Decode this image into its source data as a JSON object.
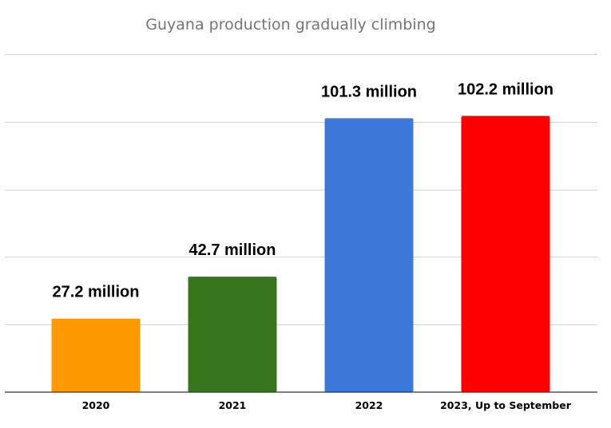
{
  "chart_data": {
    "type": "bar",
    "title": "Guyana production gradually climbing",
    "categories": [
      "2020",
      "2021",
      "2022",
      "2023, Up to September"
    ],
    "values": [
      27.2,
      42.7,
      101.3,
      102.2
    ],
    "data_labels": [
      "27.2 million",
      "42.7 million",
      "101.3 million",
      "102.2 million"
    ],
    "colors": [
      "#ff9900",
      "#38761d",
      "#3c78d8",
      "#ff0000"
    ],
    "xlabel": "",
    "ylabel": "",
    "ylim": [
      0,
      125
    ],
    "grid": true,
    "gridline_values": [
      25,
      50,
      75,
      100,
      125
    ],
    "legend": "none"
  }
}
